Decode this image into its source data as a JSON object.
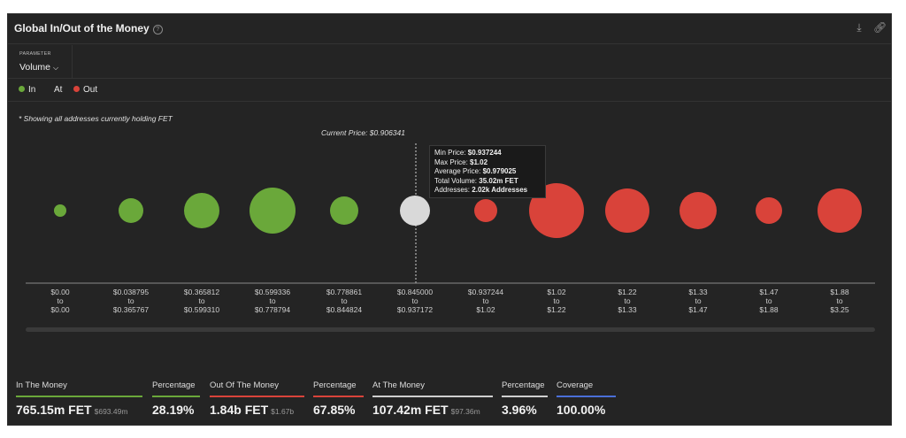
{
  "header": {
    "title": "Global In/Out of the Money",
    "help_icon": "help-circle-icon",
    "download_icon": "download-icon",
    "link_icon": "link-icon"
  },
  "parameter": {
    "label": "PARAMETER",
    "value": "Volume"
  },
  "legend": [
    {
      "label": "In",
      "color": "#6aa83a"
    },
    {
      "label": "At",
      "color": ""
    },
    {
      "label": "Out",
      "color": "#d9433a"
    }
  ],
  "note": "* Showing all addresses currently holding FET",
  "current_price_label": "Current Price: $0.906341",
  "tooltip": {
    "min_label": "Min Price:",
    "min_value": "$0.937244",
    "max_label": "Max Price:",
    "max_value": "$1.02",
    "avg_label": "Average Price:",
    "avg_value": "$0.979025",
    "vol_label": "Total Volume:",
    "vol_value": "35.02m FET",
    "addr_label": "Addresses:",
    "addr_value": "2.02k Addresses"
  },
  "chart_data": {
    "type": "scatter",
    "colors": {
      "in": "#6aa83a",
      "at": "#d9d9d9",
      "out": "#d9433a"
    },
    "current_price": 0.906341,
    "buckets": [
      {
        "from": "$0.00",
        "to": "$0.00",
        "status": "in",
        "size": 7
      },
      {
        "from": "$0.038795",
        "to": "$0.365767",
        "status": "in",
        "size": 14
      },
      {
        "from": "$0.365812",
        "to": "$0.599310",
        "status": "in",
        "size": 20
      },
      {
        "from": "$0.599336",
        "to": "$0.778794",
        "status": "in",
        "size": 26
      },
      {
        "from": "$0.778861",
        "to": "$0.844824",
        "status": "in",
        "size": 16
      },
      {
        "from": "$0.845000",
        "to": "$0.937172",
        "status": "at",
        "size": 17
      },
      {
        "from": "$0.937244",
        "to": "$1.02",
        "status": "out",
        "size": 13
      },
      {
        "from": "$1.02",
        "to": "$1.22",
        "status": "out",
        "size": 31
      },
      {
        "from": "$1.22",
        "to": "$1.33",
        "status": "out",
        "size": 25
      },
      {
        "from": "$1.33",
        "to": "$1.47",
        "status": "out",
        "size": 21
      },
      {
        "from": "$1.47",
        "to": "$1.88",
        "status": "out",
        "size": 15
      },
      {
        "from": "$1.88",
        "to": "$3.25",
        "status": "out",
        "size": 25
      }
    ],
    "to_word": "to"
  },
  "stats": [
    {
      "label": "In The Money",
      "value": "765.15m FET",
      "sub": "$693.49m",
      "color": "#6aa83a"
    },
    {
      "label": "Percentage",
      "value": "28.19%",
      "sub": "",
      "color": "#6aa83a"
    },
    {
      "label": "Out Of The Money",
      "value": "1.84b FET",
      "sub": "$1.67b",
      "color": "#d9433a"
    },
    {
      "label": "Percentage",
      "value": "67.85%",
      "sub": "",
      "color": "#d9433a"
    },
    {
      "label": "At The Money",
      "value": "107.42m FET",
      "sub": "$97.36m",
      "color": "#cfcfcf"
    },
    {
      "label": "Percentage",
      "value": "3.96%",
      "sub": "",
      "color": "#cfcfcf"
    },
    {
      "label": "Coverage",
      "value": "100.00%",
      "sub": "",
      "color": "#4a6fd8"
    }
  ]
}
